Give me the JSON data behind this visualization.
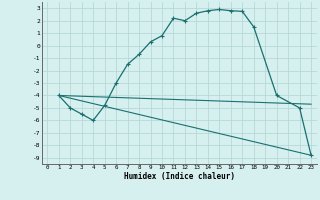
{
  "xlabel": "Humidex (Indice chaleur)",
  "background_color": "#d6efef",
  "grid_color": "#b8d8d8",
  "line_color": "#1a7070",
  "xlim": [
    -0.5,
    23.5
  ],
  "ylim": [
    -9.5,
    3.5
  ],
  "xticks": [
    0,
    1,
    2,
    3,
    4,
    5,
    6,
    7,
    8,
    9,
    10,
    11,
    12,
    13,
    14,
    15,
    16,
    17,
    18,
    19,
    20,
    21,
    22,
    23
  ],
  "yticks": [
    3,
    2,
    1,
    0,
    -1,
    -2,
    -3,
    -4,
    -5,
    -6,
    -7,
    -8,
    -9
  ],
  "line1_x": [
    1,
    2,
    3,
    4,
    5,
    6,
    7,
    8,
    9,
    10,
    11,
    12,
    13,
    14,
    15,
    16,
    17,
    18,
    20,
    22,
    23
  ],
  "line1_y": [
    -4,
    -5,
    -5.5,
    -6.0,
    -4.8,
    -3.0,
    -1.5,
    -0.7,
    0.3,
    0.8,
    2.2,
    2.0,
    2.6,
    2.8,
    2.9,
    2.8,
    2.75,
    1.5,
    -4.0,
    -5.0,
    -8.8
  ],
  "line2_x": [
    1,
    23
  ],
  "line2_y": [
    -4,
    -4.7
  ],
  "line3_x": [
    1,
    23
  ],
  "line3_y": [
    -4,
    -8.8
  ]
}
